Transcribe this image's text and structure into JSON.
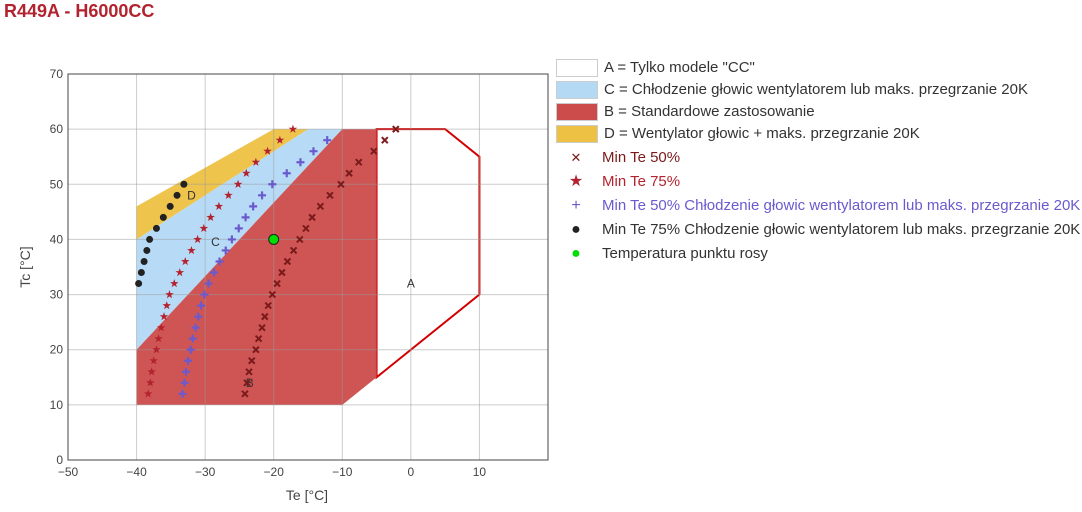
{
  "title": "R449A - H6000CC",
  "chart_data": {
    "type": "scatter",
    "xlabel": "Te [°C]",
    "ylabel": "Tc [°C]",
    "xlim": [
      -50,
      20
    ],
    "ylim": [
      0,
      70
    ],
    "xticks": [
      "−50",
      "−40",
      "−30",
      "−20",
      "−10",
      "0",
      "10"
    ],
    "yticks": [
      "0",
      "10",
      "20",
      "30",
      "40",
      "50",
      "60",
      "70"
    ],
    "grid": true,
    "regions": [
      {
        "name": "A = Tylko modele \"CC\"",
        "label": "A",
        "color": "#ffffff",
        "border": "#d40000",
        "points": [
          [
            -5,
            60
          ],
          [
            5,
            60
          ],
          [
            10,
            55
          ],
          [
            10,
            30
          ],
          [
            -5,
            15
          ]
        ],
        "label_pos": [
          0,
          32
        ]
      },
      {
        "name": "C = Chłodzenie głowic wentylatorem lub maks. przegrzanie 20K",
        "label": "C",
        "color": "#b3d9f5",
        "points": [
          [
            -40,
            20
          ],
          [
            -10,
            60
          ],
          [
            -15,
            60
          ],
          [
            -40,
            40
          ]
        ],
        "label_pos": [
          -28.5,
          39.5
        ]
      },
      {
        "name": "B = Standardowe zastosowanie",
        "label": "B",
        "color": "#cc4c4c",
        "points": [
          [
            -40,
            10
          ],
          [
            -10,
            10
          ],
          [
            -5,
            15
          ],
          [
            -5,
            60
          ],
          [
            -10,
            60
          ],
          [
            -40,
            20
          ]
        ],
        "label_pos": [
          -23.5,
          14
        ]
      },
      {
        "name": "D = Wentylator głowic + maks. przegrzanie 20K",
        "label": "D",
        "color": "#edc143",
        "points": [
          [
            -40,
            40
          ],
          [
            -15,
            60
          ],
          [
            -20,
            60
          ],
          [
            -40,
            46
          ]
        ],
        "label_pos": [
          -32,
          48
        ]
      }
    ],
    "series": [
      {
        "name": "Min Te 50%",
        "marker": "x",
        "color": "#7a1a1a",
        "y": [
          12,
          14,
          16,
          18,
          20,
          22,
          24,
          26,
          28,
          30,
          32,
          34,
          36,
          38,
          40,
          42,
          44,
          46,
          48,
          50,
          52,
          54,
          56,
          58,
          60
        ],
        "x": [
          -24.2,
          -23.9,
          -23.6,
          -23.2,
          -22.6,
          -22.2,
          -21.7,
          -21.3,
          -20.8,
          -20.2,
          -19.5,
          -18.8,
          -18.0,
          -17.1,
          -16.2,
          -15.3,
          -14.4,
          -13.2,
          -11.8,
          -10.2,
          -9.0,
          -7.6,
          -5.4,
          -3.8,
          -2.2
        ]
      },
      {
        "name": "Min Te 75%",
        "marker": "star",
        "color": "#b3232f",
        "y": [
          12,
          14,
          16,
          18,
          20,
          22,
          24,
          26,
          28,
          30,
          32,
          34,
          36,
          38,
          40,
          42,
          44,
          46,
          48,
          50,
          52,
          54,
          56,
          58,
          60
        ],
        "x": [
          -38.3,
          -38.0,
          -37.8,
          -37.5,
          -37.1,
          -36.8,
          -36.4,
          -36.0,
          -35.6,
          -35.2,
          -34.5,
          -33.7,
          -32.9,
          -32.0,
          -31.1,
          -30.2,
          -29.2,
          -28.0,
          -26.6,
          -25.2,
          -24.0,
          -22.6,
          -20.9,
          -19.1,
          -17.2
        ]
      },
      {
        "name": "Min Te 50% Chłodzenie głowic wentylatorem lub maks. przegrzanie 20K",
        "marker": "plus",
        "color": "#6a5acd",
        "y": [
          12,
          14,
          16,
          18,
          20,
          22,
          24,
          26,
          28,
          30,
          32,
          34,
          36,
          38,
          40,
          42,
          44,
          46,
          48,
          50,
          52,
          54,
          56,
          58
        ],
        "x": [
          -33.3,
          -33.0,
          -32.8,
          -32.5,
          -32.1,
          -31.8,
          -31.4,
          -31.0,
          -30.6,
          -30.1,
          -29.5,
          -28.7,
          -27.9,
          -27.0,
          -26.1,
          -25.1,
          -24.1,
          -23.0,
          -21.7,
          -20.2,
          -18.1,
          -16.1,
          -14.2,
          -12.2
        ]
      },
      {
        "name": "Min Te 75% Chłodzenie głowic wentylatorem lub maks. przegrzanie 20K",
        "marker": "dot",
        "color": "#222222",
        "y": [
          32,
          34,
          36,
          38,
          40,
          42,
          44,
          46,
          48,
          50
        ],
        "x": [
          -39.7,
          -39.3,
          -38.9,
          -38.5,
          -38.1,
          -37.1,
          -36.1,
          -35.1,
          -34.1,
          -33.1
        ]
      },
      {
        "name": "Temperatura punktu rosy",
        "marker": "green-dot",
        "color": "#00dd00",
        "y": [
          40
        ],
        "x": [
          -20
        ]
      }
    ],
    "legend_position": "right"
  }
}
